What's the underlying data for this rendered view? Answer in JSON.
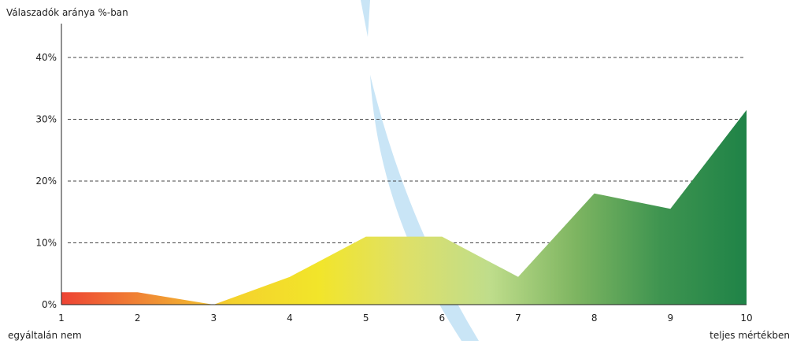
{
  "chart_data": {
    "type": "area",
    "ylabel": "Válaszadók aránya %-ban",
    "x": [
      1,
      2,
      3,
      4,
      5,
      6,
      7,
      8,
      9,
      10
    ],
    "x_tick_labels": [
      "1",
      "2",
      "3",
      "4",
      "5",
      "6",
      "7",
      "8",
      "9",
      "10"
    ],
    "x_end_labels": {
      "left": "egyáltalán nem",
      "right": "teljes mértékben"
    },
    "y_ticks": [
      0,
      10,
      20,
      30,
      40
    ],
    "y_tick_labels": [
      "0%",
      "10%",
      "20%",
      "30%",
      "40%"
    ],
    "ylim": [
      0,
      45
    ],
    "grid": "horizontal-dashed",
    "series": [
      {
        "values": [
          2,
          2,
          0,
          4.5,
          11,
          11,
          4.5,
          18,
          15.5,
          31.5
        ]
      }
    ],
    "gradient_colors": [
      "#ee4334",
      "#f08a34",
      "#f4d22c",
      "#f2e52a",
      "#dfe067",
      "#bfdd8b",
      "#7eb561",
      "#3e9450",
      "#1f8347"
    ],
    "decoration_color": "#bfe0f5",
    "axis_color": "#222222",
    "grid_color": "#444444"
  }
}
